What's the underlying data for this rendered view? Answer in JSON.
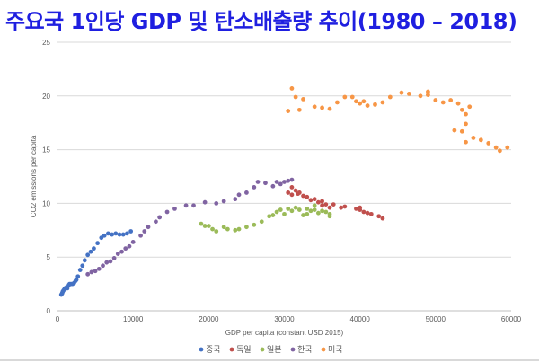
{
  "chart_data": {
    "type": "scatter",
    "title": "주요국 1인당 GDP 및 탄소배출량 추이(1980 – 2018)",
    "xlabel": "GDP per capita (constant USD 2015)",
    "ylabel": "CO2 emissions per capita",
    "xlim": [
      0,
      60000
    ],
    "ylim": [
      0,
      25
    ],
    "xticks": [
      0,
      10000,
      20000,
      30000,
      40000,
      50000,
      60000
    ],
    "yticks": [
      0,
      5,
      10,
      15,
      20,
      25
    ],
    "xtick_labels": [
      "0",
      "10000",
      "20000",
      "30000",
      "40000",
      "50000",
      "60000"
    ],
    "ytick_labels": [
      "0",
      "5",
      "10",
      "15",
      "20",
      "25"
    ],
    "grid": "horizontal",
    "legend_position": "bottom",
    "series": [
      {
        "name": "중국",
        "color": "#4472c4",
        "points": [
          [
            500,
            1.5
          ],
          [
            600,
            1.6
          ],
          [
            650,
            1.7
          ],
          [
            700,
            1.8
          ],
          [
            800,
            1.9
          ],
          [
            900,
            2.0
          ],
          [
            1000,
            2.1
          ],
          [
            1100,
            2.1
          ],
          [
            1200,
            2.2
          ],
          [
            1300,
            2.1
          ],
          [
            1500,
            2.4
          ],
          [
            1600,
            2.5
          ],
          [
            1800,
            2.5
          ],
          [
            2000,
            2.5
          ],
          [
            2200,
            2.6
          ],
          [
            2400,
            2.8
          ],
          [
            2500,
            2.9
          ],
          [
            2700,
            3.2
          ],
          [
            3000,
            3.8
          ],
          [
            3300,
            4.2
          ],
          [
            3600,
            4.7
          ],
          [
            4000,
            5.2
          ],
          [
            4400,
            5.5
          ],
          [
            4800,
            5.8
          ],
          [
            5300,
            6.3
          ],
          [
            5800,
            6.8
          ],
          [
            6200,
            7.0
          ],
          [
            6700,
            7.2
          ],
          [
            7200,
            7.1
          ],
          [
            7700,
            7.2
          ],
          [
            8200,
            7.1
          ],
          [
            8700,
            7.1
          ],
          [
            9200,
            7.2
          ],
          [
            9700,
            7.4
          ]
        ]
      },
      {
        "name": "독일",
        "color": "#c0504d",
        "points": [
          [
            30500,
            11.0
          ],
          [
            31000,
            11.5
          ],
          [
            31500,
            11.2
          ],
          [
            31800,
            10.9
          ],
          [
            32000,
            11.0
          ],
          [
            31000,
            10.8
          ],
          [
            32500,
            10.7
          ],
          [
            33000,
            10.6
          ],
          [
            34000,
            10.4
          ],
          [
            33500,
            10.3
          ],
          [
            34500,
            10.1
          ],
          [
            35000,
            10.2
          ],
          [
            35500,
            9.9
          ],
          [
            36000,
            9.6
          ],
          [
            35000,
            9.8
          ],
          [
            36500,
            9.9
          ],
          [
            37500,
            9.6
          ],
          [
            38000,
            9.7
          ],
          [
            39500,
            9.5
          ],
          [
            40000,
            9.4
          ],
          [
            40000,
            9.6
          ],
          [
            40500,
            9.2
          ],
          [
            41000,
            9.1
          ],
          [
            41500,
            9.0
          ],
          [
            42500,
            8.8
          ],
          [
            43000,
            8.6
          ]
        ]
      },
      {
        "name": "일본",
        "color": "#9bbb59",
        "points": [
          [
            19000,
            8.1
          ],
          [
            19500,
            7.9
          ],
          [
            20000,
            7.9
          ],
          [
            20500,
            7.6
          ],
          [
            21000,
            7.4
          ],
          [
            22000,
            7.8
          ],
          [
            22500,
            7.6
          ],
          [
            23500,
            7.5
          ],
          [
            24000,
            7.6
          ],
          [
            25000,
            7.8
          ],
          [
            26000,
            8.0
          ],
          [
            27000,
            8.3
          ],
          [
            28000,
            8.8
          ],
          [
            28500,
            8.9
          ],
          [
            29000,
            9.2
          ],
          [
            29500,
            9.4
          ],
          [
            30000,
            9.0
          ],
          [
            30500,
            9.5
          ],
          [
            31000,
            9.3
          ],
          [
            31500,
            9.6
          ],
          [
            32000,
            9.4
          ],
          [
            32500,
            8.9
          ],
          [
            33000,
            9.5
          ],
          [
            33500,
            9.3
          ],
          [
            34000,
            9.4
          ],
          [
            34500,
            9.1
          ],
          [
            35000,
            9.3
          ],
          [
            35500,
            9.2
          ],
          [
            36000,
            9.0
          ],
          [
            36000,
            8.8
          ],
          [
            33000,
            9.0
          ],
          [
            34000,
            9.8
          ]
        ]
      },
      {
        "name": "한국",
        "color": "#8064a2",
        "points": [
          [
            4000,
            3.4
          ],
          [
            4500,
            3.6
          ],
          [
            5000,
            3.7
          ],
          [
            5500,
            3.9
          ],
          [
            6000,
            4.2
          ],
          [
            6500,
            4.5
          ],
          [
            7000,
            4.6
          ],
          [
            7500,
            4.9
          ],
          [
            8000,
            5.3
          ],
          [
            8500,
            5.5
          ],
          [
            9000,
            5.8
          ],
          [
            9500,
            6.0
          ],
          [
            10000,
            6.4
          ],
          [
            11000,
            7.0
          ],
          [
            11500,
            7.4
          ],
          [
            12000,
            7.8
          ],
          [
            13000,
            8.3
          ],
          [
            13500,
            8.7
          ],
          [
            14500,
            9.2
          ],
          [
            15500,
            9.5
          ],
          [
            17000,
            9.8
          ],
          [
            18000,
            9.8
          ],
          [
            19500,
            10.1
          ],
          [
            21000,
            10.0
          ],
          [
            22000,
            10.2
          ],
          [
            23500,
            10.4
          ],
          [
            24000,
            10.8
          ],
          [
            25000,
            11.0
          ],
          [
            26000,
            11.5
          ],
          [
            26500,
            12.0
          ],
          [
            27500,
            11.9
          ],
          [
            28500,
            11.6
          ],
          [
            29000,
            12.0
          ],
          [
            29500,
            11.8
          ],
          [
            30000,
            12.0
          ],
          [
            31000,
            12.2
          ],
          [
            30500,
            12.1
          ]
        ]
      },
      {
        "name": "미국",
        "color": "#f79646",
        "points": [
          [
            30500,
            18.6
          ],
          [
            31000,
            20.7
          ],
          [
            31500,
            19.9
          ],
          [
            32000,
            18.7
          ],
          [
            32500,
            19.7
          ],
          [
            34000,
            19.0
          ],
          [
            35000,
            18.9
          ],
          [
            36000,
            18.8
          ],
          [
            37000,
            19.4
          ],
          [
            38000,
            19.9
          ],
          [
            39000,
            19.9
          ],
          [
            39500,
            19.5
          ],
          [
            40000,
            19.3
          ],
          [
            40500,
            19.5
          ],
          [
            41000,
            19.1
          ],
          [
            42000,
            19.2
          ],
          [
            43000,
            19.4
          ],
          [
            44000,
            19.9
          ],
          [
            45500,
            20.3
          ],
          [
            46500,
            20.2
          ],
          [
            48000,
            20.0
          ],
          [
            49000,
            20.1
          ],
          [
            49000,
            20.4
          ],
          [
            50000,
            19.6
          ],
          [
            51000,
            19.4
          ],
          [
            52000,
            19.6
          ],
          [
            53000,
            19.3
          ],
          [
            53500,
            18.7
          ],
          [
            54000,
            18.3
          ],
          [
            54500,
            19.0
          ],
          [
            54000,
            17.4
          ],
          [
            53500,
            16.7
          ],
          [
            52500,
            16.8
          ],
          [
            54000,
            15.7
          ],
          [
            55000,
            16.1
          ],
          [
            56000,
            15.9
          ],
          [
            57000,
            15.6
          ],
          [
            58000,
            15.2
          ],
          [
            58500,
            14.9
          ],
          [
            59500,
            15.2
          ]
        ]
      }
    ]
  }
}
